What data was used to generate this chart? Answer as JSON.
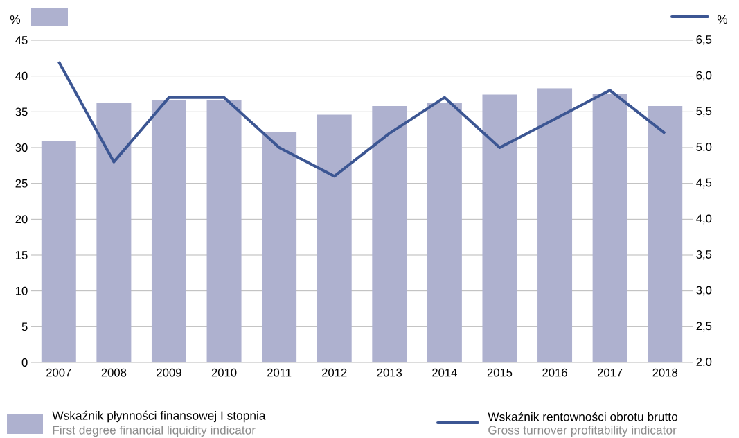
{
  "chart_data": {
    "type": "bar",
    "ylabel": "%",
    "y2label": "%",
    "categories": [
      "2007",
      "2008",
      "2009",
      "2010",
      "2011",
      "2012",
      "2013",
      "2014",
      "2015",
      "2016",
      "2017",
      "2018"
    ],
    "series": [
      {
        "name": "Wskaźnik płynności finansowej I stopnia",
        "color": "#aeb1cf",
        "values": [
          30.9,
          36.3,
          36.6,
          36.6,
          32.2,
          34.6,
          35.8,
          36.2,
          37.4,
          38.3,
          37.5,
          35.8
        ]
      },
      {
        "name": "Wskaźnik rentowności obrotu brutto",
        "type": "line",
        "axis": "y2",
        "color": "#3c5693",
        "values": [
          6.2,
          4.8,
          5.7,
          5.7,
          5.0,
          4.6,
          5.2,
          5.7,
          5.0,
          5.4,
          5.8,
          5.2
        ]
      }
    ],
    "ylim": [
      0,
      45
    ],
    "yticks": [
      0,
      5,
      10,
      15,
      20,
      25,
      30,
      35,
      40,
      45
    ],
    "y2lim": [
      2,
      6.5
    ],
    "y2ticks": [
      {
        "value": 2,
        "label": "2,0"
      },
      {
        "value": 2.5,
        "label": "2,5"
      },
      {
        "value": 3,
        "label": "3,0"
      },
      {
        "value": 3.5,
        "label": "3,5"
      },
      {
        "value": 4,
        "label": "4,0"
      },
      {
        "value": 4.5,
        "label": "4,5"
      },
      {
        "value": 5,
        "label": "5,0"
      },
      {
        "value": 5.5,
        "label": "5,5"
      },
      {
        "value": 6,
        "label": "6,0"
      },
      {
        "value": 6.5,
        "label": "6,5"
      }
    ],
    "grid": "y",
    "legend": "bottom",
    "marker": "none",
    "line_style": "solid",
    "annotations": [
      "First degree financial liquidity indicator",
      "Gross turnover profitability indicator"
    ]
  }
}
